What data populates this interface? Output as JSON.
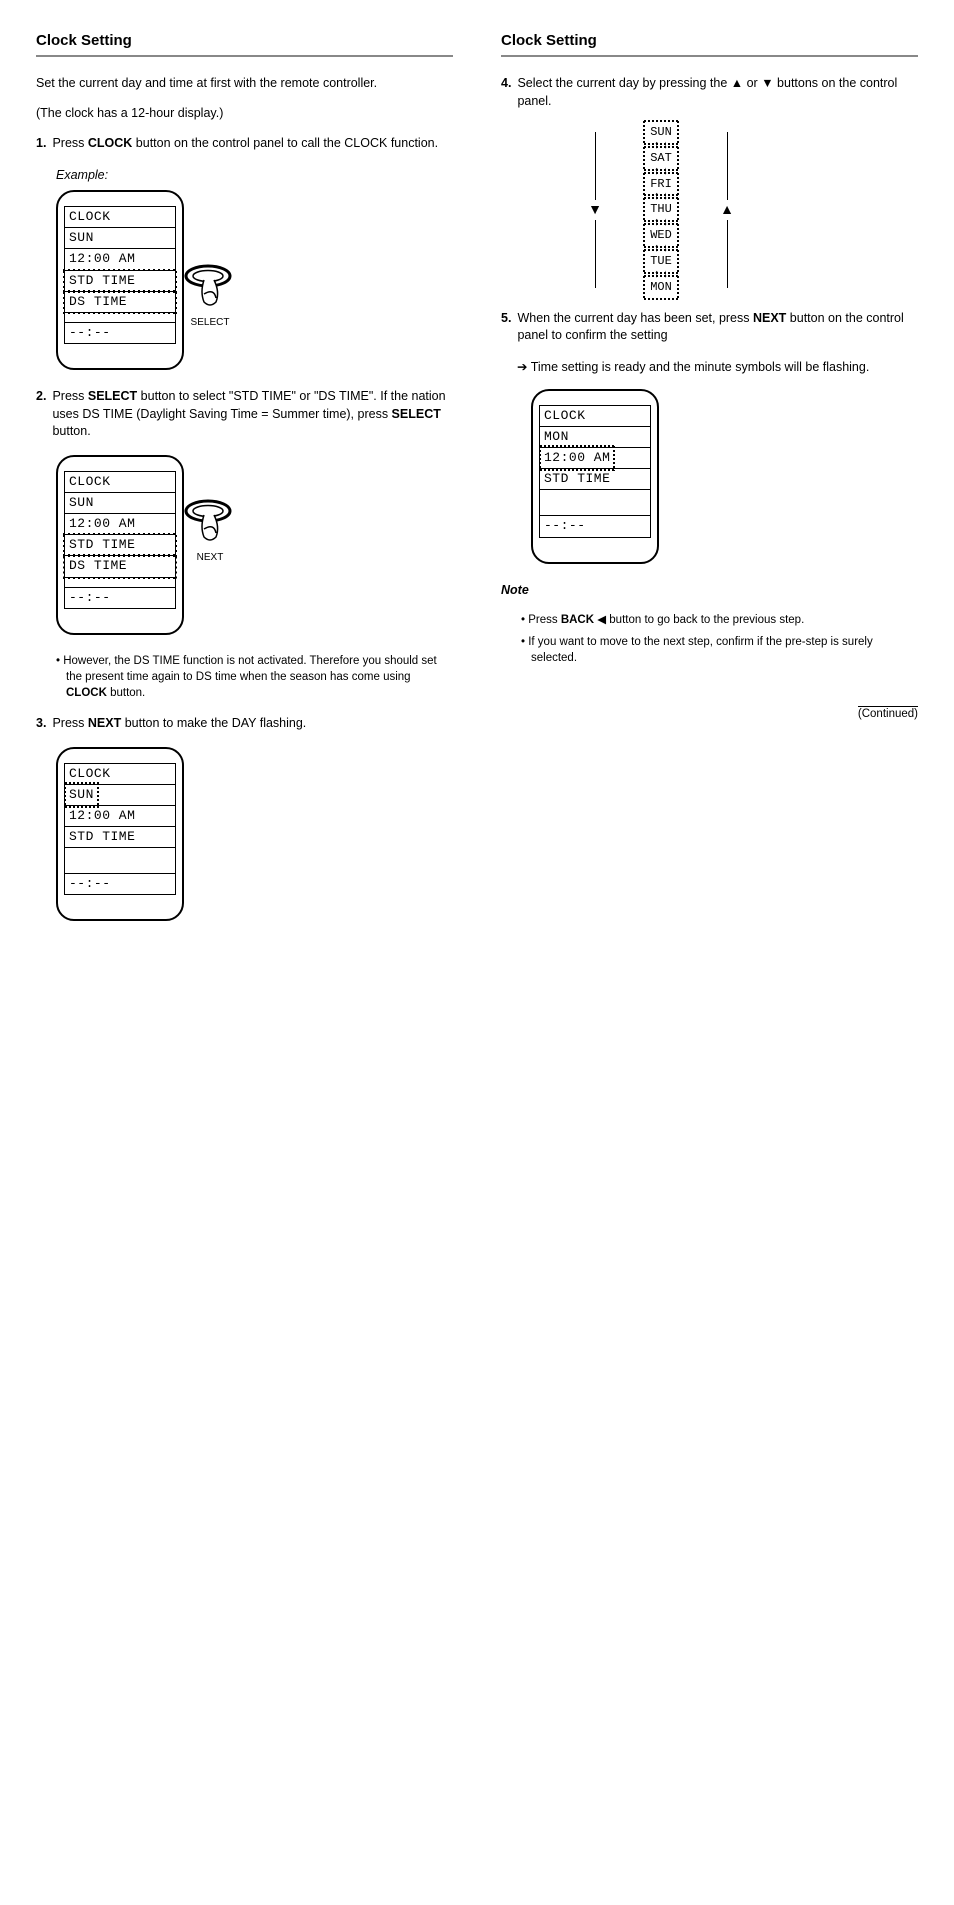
{
  "page_footer": "(Continued)",
  "left": {
    "title": "Clock Setting",
    "intro1": "Set the current day and time at first with the remote controller.",
    "intro2": "(The clock has a 12-hour display.)",
    "step1": {
      "num": "1.",
      "text_a": "Press ",
      "btn": "CLOCK",
      "text_b": " button on the control panel to call the CLOCK function."
    },
    "example_label": "Example:",
    "screens": {
      "s1": {
        "l1": "CLOCK",
        "l2": "SUN",
        "l3": "12:00 AM",
        "l4": "STD TIME",
        "l5": " DS TIME",
        "l6": "--:--"
      },
      "s2": {
        "l1": "CLOCK",
        "l2": "SUN",
        "l3": "12:00 AM",
        "l4": "STD TIME",
        "l5": " DS TIME",
        "l6": "--:--"
      },
      "s3": {
        "l1": "CLOCK",
        "l2": "SUN",
        "l3": "12:00 AM",
        "l4": "STD TIME",
        "l6": "--:--"
      }
    },
    "select_btn_label": "SELECT",
    "step2": {
      "num": "2.",
      "text_a": "Press ",
      "btn": "SELECT",
      "text_b": " button to select \"STD TIME\" or \"DS TIME\". If the nation uses DS TIME (Daylight Saving Time = Summer time), press ",
      "btn2": "SELECT",
      "text_c": " button."
    },
    "note2": "• However, the DS TIME function is not activated. Therefore you should set the present time again to DS time when the season has come using ",
    "note2_btn": "CLOCK",
    "note2_tail": " button.",
    "step3": {
      "num": "3.",
      "text_a": "Press ",
      "btn": "NEXT",
      "text_b": " button to make the DAY flashing."
    }
  },
  "right": {
    "title": "Clock Setting",
    "step4": {
      "num": "4.",
      "text_a": "Select the current day by pressing the ",
      "up": "▲",
      "or": " or ",
      "down": "▼",
      "text_b": " buttons on the control panel."
    },
    "days": [
      "SUN",
      "SAT",
      "FRI",
      "THU",
      "WED",
      "TUE",
      "MON"
    ],
    "up_label": "▲",
    "down_label": "▼",
    "step5": {
      "num": "5.",
      "text_a": "When the current day has been set, press ",
      "btn": "NEXT",
      "text_b": " button on the control panel to confirm the setting"
    },
    "step5_tail": "➔ Time setting is ready and the minute symbols will be flashing.",
    "screen4": {
      "l1": "CLOCK",
      "l2": "MON",
      "l3": "12:00 AM",
      "l4": "STD TIME",
      "l6": "--:--"
    },
    "note_heading": "Note",
    "note1_a": "• Press ",
    "note1_btn": "BACK",
    "note1_b": " button to go back to the previous step.",
    "note2_a": "• If you want to move to the next step, confirm if the pre-step is surely selected."
  }
}
